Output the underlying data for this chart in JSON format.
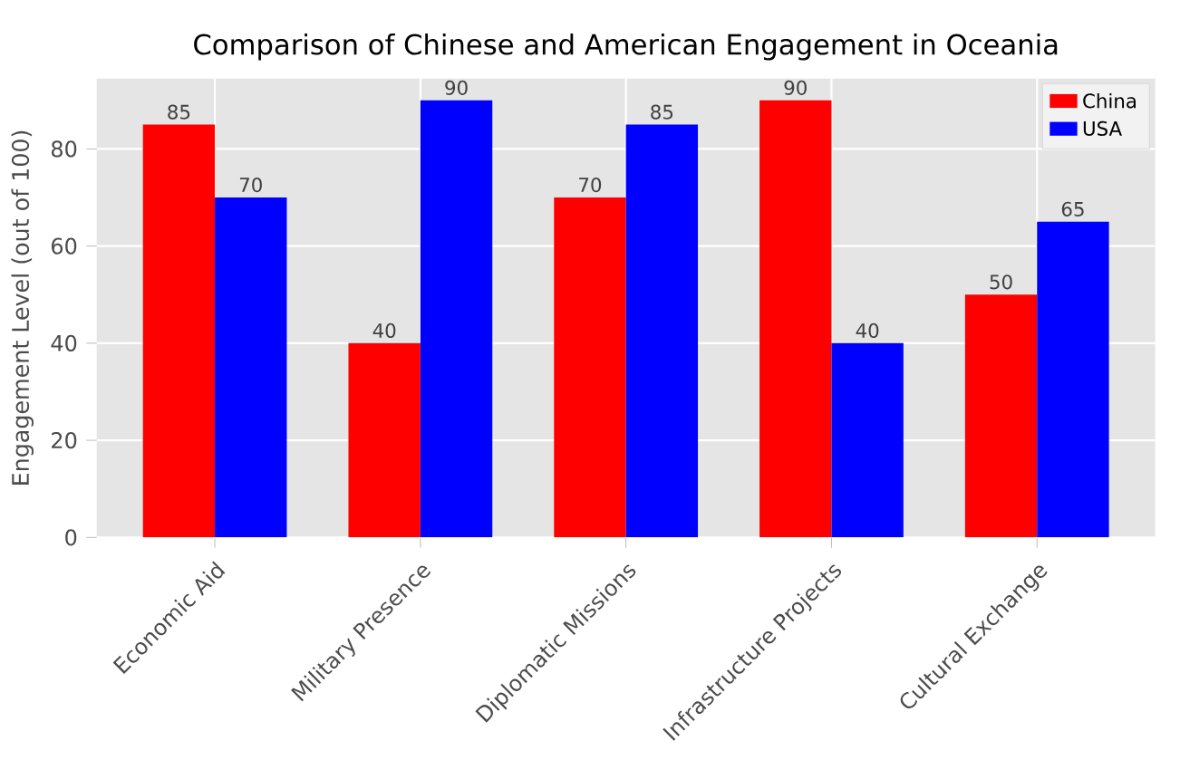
{
  "chart_data": {
    "type": "bar",
    "title": "Comparison of Chinese and American Engagement in Oceania",
    "ylabel": "Engagement Level (out of 100)",
    "categories": [
      "Economic Aid",
      "Military Presence",
      "Diplomatic Missions",
      "Infrastructure Projects",
      "Cultural Exchange"
    ],
    "series": [
      {
        "name": "China",
        "color": "#ff0000",
        "values": [
          85,
          40,
          70,
          90,
          50
        ]
      },
      {
        "name": "USA",
        "color": "#0000ff",
        "values": [
          70,
          90,
          85,
          40,
          65
        ]
      }
    ],
    "ylim": [
      0,
      94.5
    ],
    "yticks": [
      0,
      20,
      40,
      60,
      80
    ],
    "grid": true,
    "legend": "top right",
    "data_labels": true
  }
}
